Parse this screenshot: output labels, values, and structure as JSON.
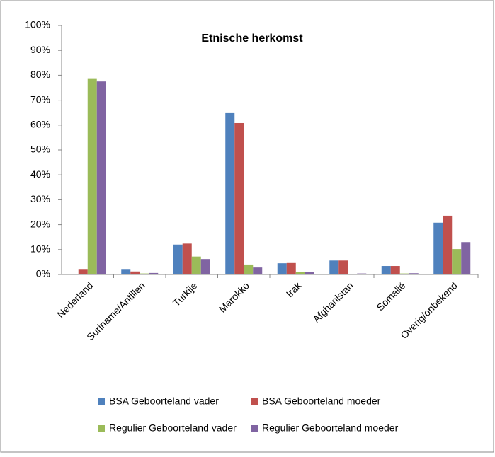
{
  "chart_data": {
    "type": "bar",
    "title": "Etnische herkomst",
    "categories": [
      "Nederland",
      "Suriname/Antillen",
      "Turkije",
      "Marokko",
      "Irak",
      "Afghanistan",
      "Somalië",
      "Overig/onbekend"
    ],
    "series": [
      {
        "name": "BSA Geboorteland vader",
        "color": "#4f81bd",
        "values": [
          0,
          2.2,
          12,
          64.8,
          4.5,
          5.6,
          3.4,
          20.8
        ]
      },
      {
        "name": "BSA Geboorteland moeder",
        "color": "#c0504d",
        "values": [
          2.2,
          1.2,
          12.4,
          60.8,
          4.6,
          5.6,
          3.4,
          23.6
        ]
      },
      {
        "name": "Regulier Geboorteland vader",
        "color": "#9bbb59",
        "values": [
          78.8,
          0.4,
          7.2,
          4,
          1,
          0,
          0.4,
          10.2
        ]
      },
      {
        "name": "Regulier Geboorteland moeder",
        "color": "#8064a2",
        "values": [
          77.5,
          0.6,
          6.2,
          2.8,
          1,
          0.4,
          0.5,
          13
        ]
      }
    ],
    "ylim": [
      0,
      100
    ],
    "yticks": [
      {
        "value": 0,
        "label": "0%"
      },
      {
        "value": 10,
        "label": "10%"
      },
      {
        "value": 20,
        "label": "20%"
      },
      {
        "value": 30,
        "label": "30%"
      },
      {
        "value": 40,
        "label": "40%"
      },
      {
        "value": 50,
        "label": "50%"
      },
      {
        "value": 60,
        "label": "60%"
      },
      {
        "value": 70,
        "label": "70%"
      },
      {
        "value": 80,
        "label": "80%"
      },
      {
        "value": 90,
        "label": "90%"
      },
      {
        "value": 100,
        "label": "100%"
      }
    ],
    "grid": false,
    "legend": "bottom"
  }
}
